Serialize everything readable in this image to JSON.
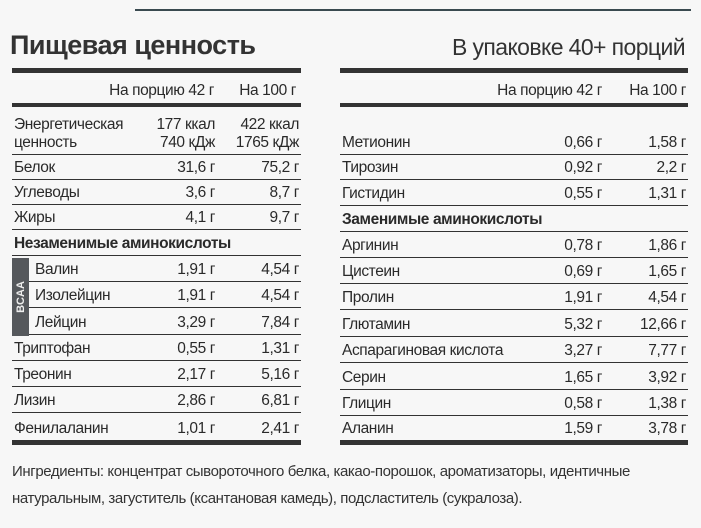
{
  "title": "Пищевая ценность",
  "servings": "В упаковке 40+ порций",
  "headers": {
    "per_serving": "На порцию 42 г",
    "per_100": "На 100 г"
  },
  "bcaa_label": "BCAA",
  "left_rows": [
    {
      "name": "Энергетическая",
      "name2": "ценность",
      "v1": "177 ккал",
      "v1b": "740 кДж",
      "v2": "422 ккал",
      "v2b": "1765 кДж"
    },
    {
      "name": "Белок",
      "v1": "31,6 г",
      "v2": "75,2 г"
    },
    {
      "name": "Углеводы",
      "v1": "3,6 г",
      "v2": "8,7 г"
    },
    {
      "name": "Жиры",
      "v1": "4,1 г",
      "v2": "9,7 г"
    },
    {
      "name": "Незаменимые аминокислоты",
      "section": true
    },
    {
      "name": "Валин",
      "v1": "1,91 г",
      "v2": "4,54 г",
      "bcaa": true
    },
    {
      "name": "Изолейцин",
      "v1": "1,91 г",
      "v2": "4,54 г",
      "bcaa": true
    },
    {
      "name": "Лейцин",
      "v1": "3,29 г",
      "v2": "7,84 г",
      "bcaa": true
    },
    {
      "name": "Триптофан",
      "v1": "0,55 г",
      "v2": "1,31 г"
    },
    {
      "name": "Треонин",
      "v1": "2,17 г",
      "v2": "5,16 г"
    },
    {
      "name": "Лизин",
      "v1": "2,86 г",
      "v2": "6,81 г"
    },
    {
      "name": "Фенилаланин",
      "v1": "1,01 г",
      "v2": "2,41 г"
    }
  ],
  "right_rows": [
    {
      "name": "Метионин",
      "v1": "0,66 г",
      "v2": "1,58 г"
    },
    {
      "name": "Тирозин",
      "v1": "0,92 г",
      "v2": "2,2 г"
    },
    {
      "name": "Гистидин",
      "v1": "0,55 г",
      "v2": "1,31 г"
    },
    {
      "name": "Заменимые аминокислоты",
      "section": true
    },
    {
      "name": "Аргинин",
      "v1": "0,78 г",
      "v2": "1,86 г"
    },
    {
      "name": "Цистеин",
      "v1": "0,69 г",
      "v2": "1,65 г"
    },
    {
      "name": "Пролин",
      "v1": "1,91 г",
      "v2": "4,54 г"
    },
    {
      "name": "Глютамин",
      "v1": "5,32 г",
      "v2": "12,66 г"
    },
    {
      "name": "Аспарагиновая кислота",
      "v1": "3,27 г",
      "v2": "7,77 г"
    },
    {
      "name": "Серин",
      "v1": "1,65 г",
      "v2": "3,92 г"
    },
    {
      "name": "Глицин",
      "v1": "0,58 г",
      "v2": "1,38 г"
    },
    {
      "name": "Аланин",
      "v1": "1,59 г",
      "v2": "3,78 г"
    }
  ],
  "ingredients": "Ингредиенты: концентрат сывороточного белка, какао-порошок, ароматизаторы, идентичные натуральным, загуститель (ксантановая камедь), подсластитель (сукралоза)."
}
